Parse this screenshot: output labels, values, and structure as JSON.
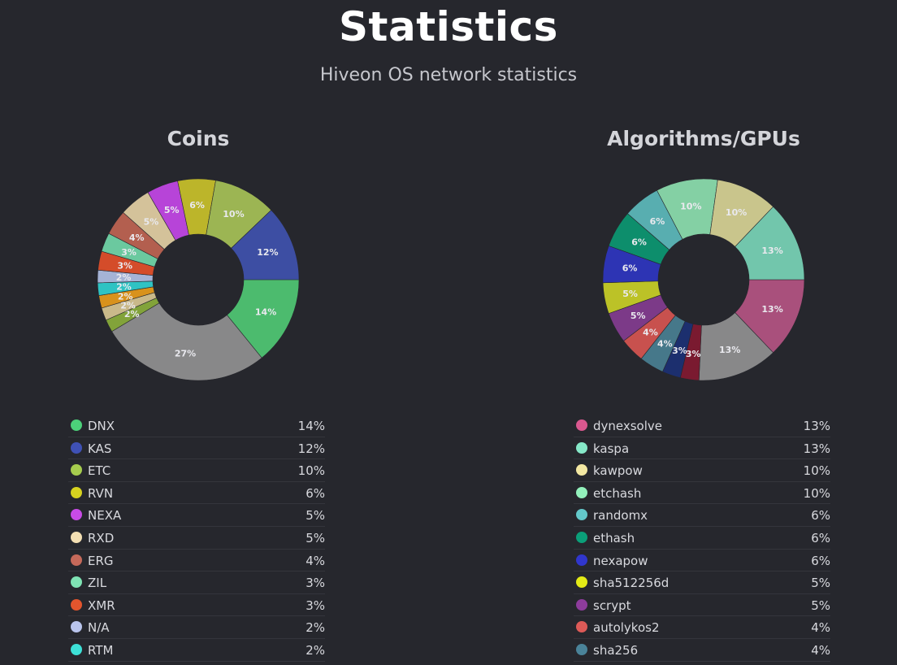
{
  "header": {
    "title": "Statistics",
    "subtitle": "Hiveon OS network statistics"
  },
  "chart_data": [
    {
      "type": "pie",
      "title": "Coins",
      "hole": true,
      "slices": [
        {
          "label": "DNX",
          "value": 14,
          "text": "14%",
          "color": "#4cbb6e"
        },
        {
          "label": "",
          "value": 27,
          "text": "27%",
          "color": "#888889"
        },
        {
          "label": "",
          "value": 2,
          "text": "2%",
          "color": "#82a33a"
        },
        {
          "label": "",
          "value": 2,
          "text": "2%",
          "color": "#c9b98a"
        },
        {
          "label": "",
          "value": 2,
          "text": "2%",
          "color": "#d8921c"
        },
        {
          "label": "RTM",
          "value": 2,
          "text": "2%",
          "color": "#2fc3c3"
        },
        {
          "label": "N/A",
          "value": 2,
          "text": "2%",
          "color": "#a5b3d6"
        },
        {
          "label": "XMR",
          "value": 3,
          "text": "3%",
          "color": "#d44c2a"
        },
        {
          "label": "ZIL",
          "value": 3,
          "text": "3%",
          "color": "#6bc99f"
        },
        {
          "label": "ERG",
          "value": 4,
          "text": "4%",
          "color": "#b35f4f"
        },
        {
          "label": "RXD",
          "value": 5,
          "text": "5%",
          "color": "#d4c29a"
        },
        {
          "label": "NEXA",
          "value": 5,
          "text": "5%",
          "color": "#b744d8"
        },
        {
          "label": "RVN",
          "value": 6,
          "text": "6%",
          "color": "#bcb52a"
        },
        {
          "label": "ETC",
          "value": 10,
          "text": "10%",
          "color": "#9cb553"
        },
        {
          "label": "KAS",
          "value": 12,
          "text": "12%",
          "color": "#3d4ea3"
        }
      ],
      "legend": [
        {
          "label": "DNX",
          "value": "14%",
          "color": "#4cd17a"
        },
        {
          "label": "KAS",
          "value": "12%",
          "color": "#3f51b5"
        },
        {
          "label": "ETC",
          "value": "10%",
          "color": "#a6cc4e"
        },
        {
          "label": "RVN",
          "value": "6%",
          "color": "#d6d21f"
        },
        {
          "label": "NEXA",
          "value": "5%",
          "color": "#c84be6"
        },
        {
          "label": "RXD",
          "value": "5%",
          "color": "#f3dfb3"
        },
        {
          "label": "ERG",
          "value": "4%",
          "color": "#c5695a"
        },
        {
          "label": "ZIL",
          "value": "3%",
          "color": "#7fe3b4"
        },
        {
          "label": "XMR",
          "value": "3%",
          "color": "#e4552d"
        },
        {
          "label": "N/A",
          "value": "2%",
          "color": "#b9c4ec"
        },
        {
          "label": "RTM",
          "value": "2%",
          "color": "#3de0d6"
        }
      ]
    },
    {
      "type": "pie",
      "title": "Algorithms/GPUs",
      "hole": true,
      "slices": [
        {
          "label": "dynexsolve",
          "value": 13,
          "text": "13%",
          "color": "#a9507c"
        },
        {
          "label": "",
          "value": 13,
          "text": "13%",
          "color": "#888889"
        },
        {
          "label": "",
          "value": 3,
          "text": "3%",
          "color": "#7a1a30"
        },
        {
          "label": "",
          "value": 3,
          "text": "3%",
          "color": "#1c2f6e"
        },
        {
          "label": "sha256",
          "value": 4,
          "text": "4%",
          "color": "#46788a"
        },
        {
          "label": "autolykos2",
          "value": 4,
          "text": "4%",
          "color": "#c8514e"
        },
        {
          "label": "scrypt",
          "value": 5,
          "text": "5%",
          "color": "#7c3a88"
        },
        {
          "label": "sha512256d",
          "value": 5,
          "text": "5%",
          "color": "#bcc227"
        },
        {
          "label": "nexapow",
          "value": 6,
          "text": "6%",
          "color": "#2d34b4"
        },
        {
          "label": "ethash",
          "value": 6,
          "text": "6%",
          "color": "#0d8e6c"
        },
        {
          "label": "randomx",
          "value": 6,
          "text": "6%",
          "color": "#58aeb0"
        },
        {
          "label": "etchash",
          "value": 10,
          "text": "10%",
          "color": "#84d0a4"
        },
        {
          "label": "kawpow",
          "value": 10,
          "text": "10%",
          "color": "#c9c58c"
        },
        {
          "label": "kaspa",
          "value": 13,
          "text": "13%",
          "color": "#72c6ac"
        }
      ],
      "legend": [
        {
          "label": "dynexsolve",
          "value": "13%",
          "color": "#d9588f"
        },
        {
          "label": "kaspa",
          "value": "13%",
          "color": "#86e8c8"
        },
        {
          "label": "kawpow",
          "value": "10%",
          "color": "#f3e8a2"
        },
        {
          "label": "etchash",
          "value": "10%",
          "color": "#93f1bc"
        },
        {
          "label": "randomx",
          "value": "6%",
          "color": "#63c8ca"
        },
        {
          "label": "ethash",
          "value": "6%",
          "color": "#0b9f79"
        },
        {
          "label": "nexapow",
          "value": "6%",
          "color": "#3036cc"
        },
        {
          "label": "sha512256d",
          "value": "5%",
          "color": "#e3ea16"
        },
        {
          "label": "scrypt",
          "value": "5%",
          "color": "#8d3c9c"
        },
        {
          "label": "autolykos2",
          "value": "4%",
          "color": "#dd5a57"
        },
        {
          "label": "sha256",
          "value": "4%",
          "color": "#4a8399"
        }
      ]
    }
  ]
}
